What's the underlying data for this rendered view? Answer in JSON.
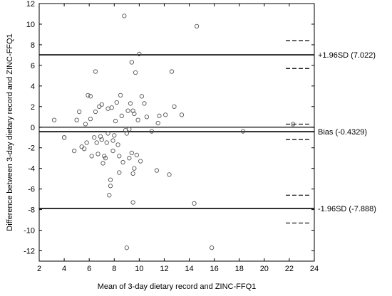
{
  "chart_data": {
    "type": "scatter",
    "xlabel": "Mean of 3-day dietary record and ZINC-FFQ1",
    "ylabel": "Difference between 3-day dietary record and ZINC-FFQ1",
    "xlim": [
      2,
      24
    ],
    "ylim": [
      -13,
      12
    ],
    "xticks": [
      "2",
      "4",
      "6",
      "8",
      "10",
      "12",
      "14",
      "16",
      "18",
      "20",
      "22",
      "24"
    ],
    "yticks": [
      "12",
      "10",
      "8",
      "6",
      "4",
      "2",
      "0",
      "-2",
      "-4",
      "-6",
      "-8",
      "-10",
      "-12"
    ],
    "grid": false,
    "reference_lines": [
      {
        "label": "+1.96SD (7.022)",
        "value": 7.022
      },
      {
        "label": "Bias (-0.4329)",
        "value": -0.4329
      },
      {
        "label": "-1.96SD (-7.888)",
        "value": -7.888
      }
    ],
    "zero_line": 0,
    "confidence_limits": [
      8.4,
      5.7,
      0.3,
      -1.2,
      -6.6,
      -9.3
    ],
    "points": [
      [
        3.2,
        0.7
      ],
      [
        4.0,
        -1.0
      ],
      [
        4.8,
        -2.3
      ],
      [
        5.0,
        0.7
      ],
      [
        5.2,
        1.5
      ],
      [
        5.4,
        -1.9
      ],
      [
        5.6,
        -2.1
      ],
      [
        5.7,
        0.3
      ],
      [
        5.8,
        -1.5
      ],
      [
        5.9,
        3.1
      ],
      [
        6.1,
        3.0
      ],
      [
        6.1,
        0.8
      ],
      [
        6.2,
        -2.8
      ],
      [
        6.4,
        -1.0
      ],
      [
        6.5,
        5.4
      ],
      [
        6.5,
        1.5
      ],
      [
        6.6,
        -1.5
      ],
      [
        6.7,
        -2.6
      ],
      [
        6.8,
        2.0
      ],
      [
        6.9,
        -0.9
      ],
      [
        7.0,
        2.2
      ],
      [
        7.0,
        -1.2
      ],
      [
        7.1,
        -3.5
      ],
      [
        7.2,
        -2.8
      ],
      [
        7.3,
        -3.0
      ],
      [
        7.4,
        -1.5
      ],
      [
        7.5,
        1.8
      ],
      [
        7.5,
        -0.6
      ],
      [
        7.6,
        -6.6
      ],
      [
        7.7,
        -5.7
      ],
      [
        7.7,
        -5.1
      ],
      [
        7.8,
        1.9
      ],
      [
        7.9,
        -2.3
      ],
      [
        7.9,
        -1.3
      ],
      [
        8.0,
        -0.8
      ],
      [
        8.1,
        0.6
      ],
      [
        8.2,
        2.4
      ],
      [
        8.3,
        -1.7
      ],
      [
        8.4,
        -2.8
      ],
      [
        8.5,
        3.1
      ],
      [
        8.6,
        1.1
      ],
      [
        8.7,
        -3.4
      ],
      [
        8.8,
        10.8
      ],
      [
        8.9,
        -0.3
      ],
      [
        9.0,
        -0.6
      ],
      [
        9.0,
        -11.7
      ],
      [
        9.1,
        1.6
      ],
      [
        9.2,
        -0.2
      ],
      [
        9.2,
        -3.0
      ],
      [
        9.3,
        2.3
      ],
      [
        9.4,
        -2.5
      ],
      [
        9.4,
        6.3
      ],
      [
        9.5,
        1.6
      ],
      [
        9.5,
        -7.3
      ],
      [
        9.6,
        1.3
      ],
      [
        9.7,
        5.3
      ],
      [
        9.8,
        -2.7
      ],
      [
        9.9,
        0.7
      ],
      [
        10.0,
        7.1
      ],
      [
        10.1,
        -3.3
      ],
      [
        10.2,
        3.0
      ],
      [
        10.4,
        2.3
      ],
      [
        10.6,
        1.0
      ],
      [
        11.0,
        -0.4
      ],
      [
        11.4,
        -4.2
      ],
      [
        11.5,
        0.4
      ],
      [
        11.6,
        1.1
      ],
      [
        12.1,
        1.2
      ],
      [
        12.4,
        -4.6
      ],
      [
        12.6,
        5.4
      ],
      [
        12.8,
        2.0
      ],
      [
        13.4,
        1.2
      ],
      [
        14.4,
        -7.4
      ],
      [
        14.6,
        9.8
      ],
      [
        15.8,
        -11.7
      ],
      [
        18.3,
        -0.4
      ],
      [
        22.3,
        0.3
      ],
      [
        4.0,
        -1.0
      ],
      [
        9.6,
        -4.0
      ],
      [
        8.4,
        -4.4
      ],
      [
        9.5,
        -4.5
      ]
    ]
  }
}
